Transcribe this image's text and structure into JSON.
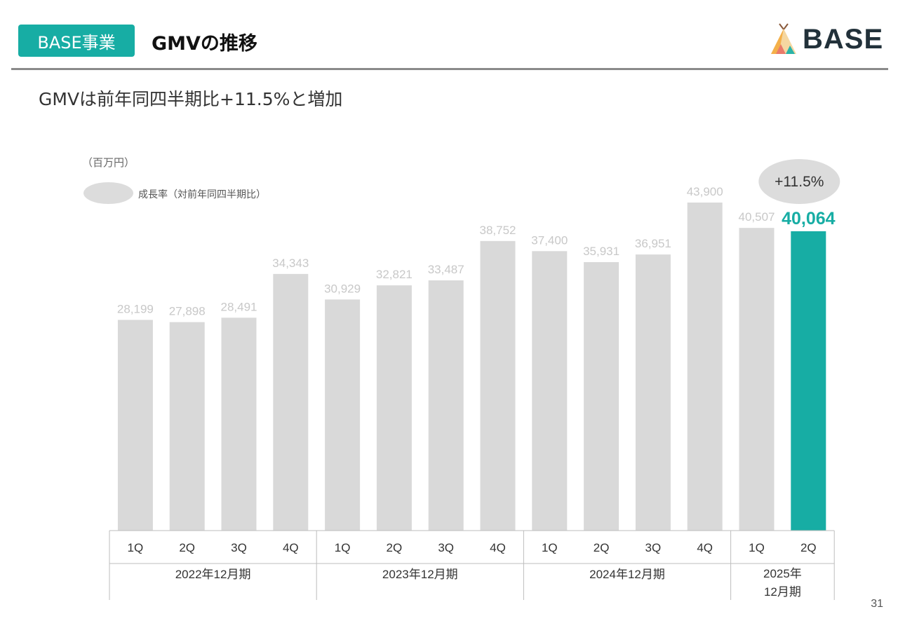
{
  "header": {
    "badge": "BASE事業",
    "title": "GMVの推移",
    "logo_text": "BASE"
  },
  "subtitle": "GMVは前年同四半期比+11.5%と増加",
  "unit": "（百万円）",
  "legend": {
    "label": "成長率（対前年同四半期比）"
  },
  "page_number": "31",
  "colors": {
    "accent": "#17ada4",
    "bar": "#d9d9d9",
    "value_label": "#c8c8c8",
    "growth_bubble": "#dcdcdc"
  },
  "chart_data": {
    "type": "bar",
    "categories": [
      "1Q",
      "2Q",
      "3Q",
      "4Q",
      "1Q",
      "2Q",
      "3Q",
      "4Q",
      "1Q",
      "2Q",
      "3Q",
      "4Q",
      "1Q",
      "2Q"
    ],
    "values": [
      28199,
      27898,
      28491,
      34343,
      30929,
      32821,
      33487,
      38752,
      37400,
      35931,
      36951,
      43900,
      40507,
      40064
    ],
    "value_labels": [
      "28,199",
      "27,898",
      "28,491",
      "34,343",
      "30,929",
      "32,821",
      "33,487",
      "38,752",
      "37,400",
      "35,931",
      "36,951",
      "43,900",
      "40,507",
      "40,064"
    ],
    "highlight_index": 13,
    "groups": [
      {
        "label": "2022年12月期",
        "count": 4
      },
      {
        "label": "2023年12月期",
        "count": 4
      },
      {
        "label": "2024年12月期",
        "count": 4
      },
      {
        "label_lines": [
          "2025年",
          "12月期"
        ],
        "count": 2
      }
    ],
    "growth_annotation": {
      "index": 13,
      "text": "+11.5%"
    },
    "ylim": [
      0,
      46000
    ],
    "grid": false
  }
}
